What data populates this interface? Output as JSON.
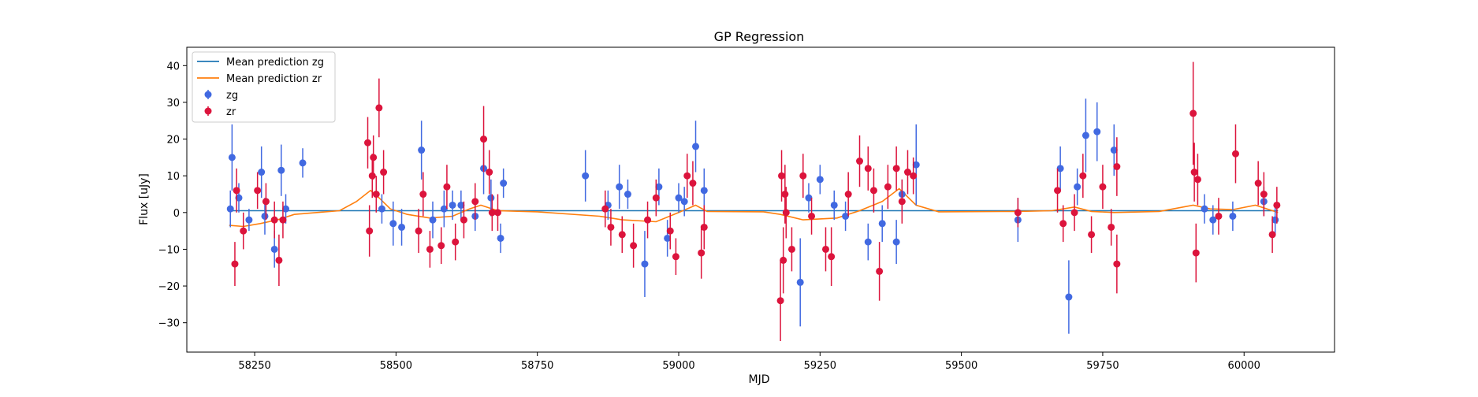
{
  "chart_data": {
    "type": "scatter",
    "title": "GP Regression",
    "xlabel": "MJD",
    "ylabel": "Flux [uJy]",
    "xlim": [
      58130,
      60160
    ],
    "ylim": [
      -38,
      45
    ],
    "x_ticks": [
      58250,
      58500,
      58750,
      59000,
      59250,
      59500,
      59750,
      60000
    ],
    "y_ticks": [
      -30,
      -20,
      -10,
      0,
      10,
      20,
      30,
      40
    ],
    "legend_position": "top-left",
    "grid": false,
    "colors": {
      "zg": "#4169e1",
      "zr": "#dc143c",
      "mean_zg": "#1f77b4",
      "mean_zr": "#ff7f0e"
    },
    "legend": [
      "Mean prediction zg",
      "Mean prediction zr",
      "zg",
      "zr"
    ],
    "lines": [
      {
        "name": "Mean prediction zg",
        "points": [
          [
            58205,
            0.5
          ],
          [
            60060,
            0.5
          ]
        ]
      },
      {
        "name": "Mean prediction zr",
        "points": [
          [
            58205,
            -3.5
          ],
          [
            58230,
            -3.8
          ],
          [
            58260,
            -3
          ],
          [
            58290,
            -2
          ],
          [
            58320,
            -0.5
          ],
          [
            58360,
            0
          ],
          [
            58400,
            0.5
          ],
          [
            58430,
            3
          ],
          [
            58455,
            6
          ],
          [
            58470,
            4
          ],
          [
            58490,
            1
          ],
          [
            58520,
            -0.5
          ],
          [
            58560,
            -1.5
          ],
          [
            58600,
            -1
          ],
          [
            58630,
            1
          ],
          [
            58650,
            2
          ],
          [
            58680,
            0.5
          ],
          [
            58750,
            0.2
          ],
          [
            58860,
            -1
          ],
          [
            58900,
            -2
          ],
          [
            58960,
            -2.5
          ],
          [
            59000,
            0
          ],
          [
            59030,
            2
          ],
          [
            59050,
            0.3
          ],
          [
            59150,
            0.2
          ],
          [
            59180,
            -0.5
          ],
          [
            59220,
            -2
          ],
          [
            59280,
            -1.5
          ],
          [
            59320,
            0.5
          ],
          [
            59360,
            3
          ],
          [
            59390,
            6.5
          ],
          [
            59420,
            2
          ],
          [
            59460,
            0.2
          ],
          [
            59600,
            0.3
          ],
          [
            59660,
            0.5
          ],
          [
            59700,
            1.5
          ],
          [
            59730,
            0.3
          ],
          [
            59770,
            0
          ],
          [
            59850,
            0.3
          ],
          [
            59910,
            2
          ],
          [
            59940,
            1
          ],
          [
            59980,
            0.8
          ],
          [
            60020,
            2
          ],
          [
            60060,
            0
          ]
        ]
      }
    ],
    "series": [
      {
        "name": "zg",
        "points": [
          [
            58207,
            1,
            5
          ],
          [
            58210,
            15,
            9
          ],
          [
            58222,
            4,
            4
          ],
          [
            58240,
            -2,
            3
          ],
          [
            58262,
            11,
            7
          ],
          [
            58268,
            -1,
            5
          ],
          [
            58285,
            -10,
            5
          ],
          [
            58297,
            11.5,
            7
          ],
          [
            58305,
            1,
            4
          ],
          [
            58335,
            13.5,
            4
          ],
          [
            58475,
            1,
            4
          ],
          [
            58495,
            -3,
            6
          ],
          [
            58510,
            -4,
            5
          ],
          [
            58545,
            17,
            8
          ],
          [
            58565,
            -2,
            5
          ],
          [
            58585,
            1,
            5
          ],
          [
            58600,
            2,
            4
          ],
          [
            58615,
            2,
            4
          ],
          [
            58640,
            -1,
            4
          ],
          [
            58655,
            12,
            7
          ],
          [
            58668,
            4,
            5
          ],
          [
            58685,
            -7,
            4
          ],
          [
            58690,
            8,
            4
          ],
          [
            58835,
            10,
            7
          ],
          [
            58875,
            2,
            4
          ],
          [
            58895,
            7,
            6
          ],
          [
            58910,
            5,
            4
          ],
          [
            58940,
            -14,
            9
          ],
          [
            58965,
            7,
            5
          ],
          [
            58980,
            -7,
            5
          ],
          [
            59000,
            4,
            4
          ],
          [
            59010,
            3,
            4
          ],
          [
            59030,
            18,
            7
          ],
          [
            59045,
            6,
            6
          ],
          [
            59215,
            -19,
            12
          ],
          [
            59230,
            4,
            4
          ],
          [
            59250,
            9,
            4
          ],
          [
            59275,
            2,
            4
          ],
          [
            59295,
            -1,
            4
          ],
          [
            59335,
            -8,
            5
          ],
          [
            59360,
            -3,
            5
          ],
          [
            59385,
            -8,
            6
          ],
          [
            59395,
            5,
            4
          ],
          [
            59420,
            13,
            11
          ],
          [
            59600,
            -2,
            6
          ],
          [
            59675,
            12,
            6
          ],
          [
            59690,
            -23,
            10
          ],
          [
            59705,
            7,
            5
          ],
          [
            59720,
            21,
            10
          ],
          [
            59740,
            22,
            8
          ],
          [
            59770,
            17,
            7
          ],
          [
            59930,
            1,
            4
          ],
          [
            59945,
            -2,
            4
          ],
          [
            59980,
            -1,
            4
          ],
          [
            60035,
            3,
            4
          ],
          [
            60055,
            -2,
            4
          ]
        ]
      },
      {
        "name": "zr",
        "points": [
          [
            58215,
            -14,
            6
          ],
          [
            58218,
            6,
            6
          ],
          [
            58230,
            -5,
            5
          ],
          [
            58255,
            6,
            5
          ],
          [
            58270,
            3,
            5
          ],
          [
            58285,
            -2,
            5
          ],
          [
            58293,
            -13,
            7
          ],
          [
            58300,
            -2,
            5
          ],
          [
            58450,
            19,
            7
          ],
          [
            58453,
            -5,
            7
          ],
          [
            58458,
            10,
            6
          ],
          [
            58460,
            15,
            6
          ],
          [
            58465,
            5,
            5
          ],
          [
            58470,
            28.5,
            8
          ],
          [
            58478,
            11,
            6
          ],
          [
            58540,
            -5,
            6
          ],
          [
            58548,
            5,
            6
          ],
          [
            58560,
            -10,
            5
          ],
          [
            58580,
            -9,
            5
          ],
          [
            58590,
            7,
            6
          ],
          [
            58605,
            -8,
            5
          ],
          [
            58620,
            -2,
            5
          ],
          [
            58640,
            3,
            5
          ],
          [
            58655,
            20,
            9
          ],
          [
            58665,
            11,
            6
          ],
          [
            58670,
            0,
            5
          ],
          [
            58680,
            0,
            5
          ],
          [
            58870,
            1,
            5
          ],
          [
            58880,
            -4,
            5
          ],
          [
            58900,
            -6,
            5
          ],
          [
            58920,
            -9,
            6
          ],
          [
            58945,
            -2,
            5
          ],
          [
            58960,
            4,
            5
          ],
          [
            58985,
            -5,
            5
          ],
          [
            58995,
            -12,
            5
          ],
          [
            59015,
            10,
            6
          ],
          [
            59025,
            8,
            6
          ],
          [
            59040,
            -11,
            7
          ],
          [
            59045,
            -4,
            6
          ],
          [
            59180,
            -24,
            11
          ],
          [
            59182,
            10,
            7
          ],
          [
            59185,
            -13,
            9
          ],
          [
            59188,
            5,
            8
          ],
          [
            59190,
            0,
            7
          ],
          [
            59200,
            -10,
            6
          ],
          [
            59220,
            10,
            6
          ],
          [
            59235,
            -1,
            5
          ],
          [
            59260,
            -10,
            6
          ],
          [
            59270,
            -12,
            8
          ],
          [
            59300,
            5,
            6
          ],
          [
            59320,
            14,
            7
          ],
          [
            59335,
            12,
            6
          ],
          [
            59345,
            6,
            6
          ],
          [
            59355,
            -16,
            8
          ],
          [
            59370,
            7,
            6
          ],
          [
            59385,
            12,
            6
          ],
          [
            59395,
            3,
            6
          ],
          [
            59405,
            11,
            6
          ],
          [
            59415,
            10,
            5
          ],
          [
            59600,
            0,
            4
          ],
          [
            59670,
            6,
            6
          ],
          [
            59680,
            -3,
            5
          ],
          [
            59700,
            0,
            5
          ],
          [
            59715,
            10,
            6
          ],
          [
            59730,
            -6,
            5
          ],
          [
            59750,
            7,
            6
          ],
          [
            59765,
            -4,
            5
          ],
          [
            59775,
            12.5,
            8
          ],
          [
            59775,
            -14,
            8
          ],
          [
            59910,
            27,
            14
          ],
          [
            59912,
            11,
            8
          ],
          [
            59915,
            -11,
            8
          ],
          [
            59918,
            9,
            7
          ],
          [
            59955,
            -1,
            5
          ],
          [
            59985,
            16,
            8
          ],
          [
            60025,
            8,
            6
          ],
          [
            60035,
            5,
            6
          ],
          [
            60050,
            -6,
            5
          ],
          [
            60058,
            2,
            5
          ]
        ]
      }
    ]
  }
}
